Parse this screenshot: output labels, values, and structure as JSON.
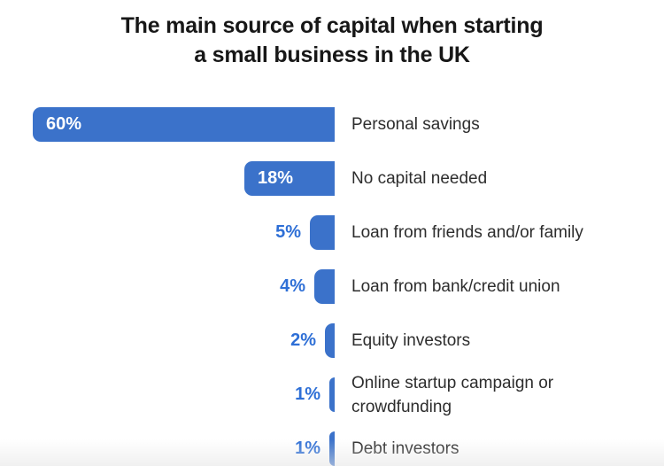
{
  "title": {
    "line1": "The main source of capital when starting",
    "line2": "a small business in the UK"
  },
  "colors": {
    "bar_blue": "#3b72ca",
    "value_text_outside": "#2e6fd6",
    "value_text_inside": "#ffffff",
    "category_text": "#2d2d2d",
    "title_text": "#171717",
    "background": "#ffffff"
  },
  "chart_data": {
    "type": "bar",
    "orientation": "horizontal",
    "bars_right_aligned": true,
    "title": "The main source of capital when starting a small business in the UK",
    "categories": [
      "Personal savings",
      "No capital needed",
      "Loan from friends and/or family",
      "Loan from bank/credit union",
      "Equity investors",
      "Online startup campaign or crowdfunding",
      "Debt investors"
    ],
    "values": [
      60,
      18,
      5,
      4,
      2,
      1,
      1
    ],
    "value_labels": [
      "60%",
      "18%",
      "5%",
      "4%",
      "2%",
      "1%",
      "1%"
    ],
    "unit": "%",
    "xlabel": "",
    "ylabel": "",
    "xlim": [
      0,
      60
    ],
    "grid": false,
    "legend": false,
    "value_label_inside_threshold": 10
  }
}
